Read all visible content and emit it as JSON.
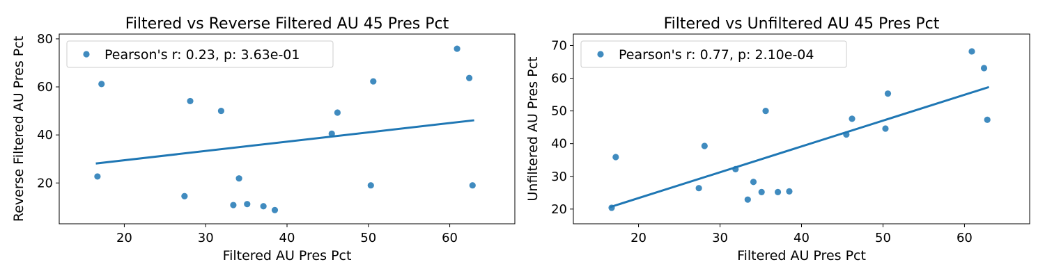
{
  "chart_data": [
    {
      "type": "scatter",
      "title": "Filtered vs Reverse Filtered AU 45 Pres Pct",
      "xlabel": "Filtered AU Pres Pct",
      "ylabel": "Reverse Filtered AU Pres Pct",
      "xlim": [
        12,
        68
      ],
      "ylim": [
        3,
        82
      ],
      "xticks": [
        20,
        30,
        40,
        50,
        60
      ],
      "yticks": [
        20,
        40,
        60,
        80
      ],
      "grid": false,
      "legend_position": "top-left",
      "color": "#1f77b4",
      "series": [
        {
          "name": "Pearson's r: 0.23, p: 3.63e-01",
          "points": [
            [
              16.7,
              22.7
            ],
            [
              17.2,
              61.2
            ],
            [
              27.4,
              14.5
            ],
            [
              28.1,
              54.1
            ],
            [
              31.9,
              50.0
            ],
            [
              33.4,
              10.8
            ],
            [
              34.1,
              21.9
            ],
            [
              35.1,
              11.2
            ],
            [
              37.1,
              10.3
            ],
            [
              38.5,
              8.7
            ],
            [
              45.5,
              40.5
            ],
            [
              46.2,
              49.3
            ],
            [
              50.3,
              19.0
            ],
            [
              50.6,
              62.3
            ],
            [
              60.9,
              75.9
            ],
            [
              62.4,
              63.7
            ],
            [
              62.8,
              19.0
            ]
          ]
        }
      ],
      "trendline": {
        "x": [
          16.5,
          63.0
        ],
        "y": [
          28.1,
          46.1
        ]
      }
    },
    {
      "type": "scatter",
      "title": "Filtered vs Unfiltered AU 45 Pres Pct",
      "xlabel": "Filtered AU Pres Pct",
      "ylabel": "Unfiltered AU Pres Pct",
      "xlim": [
        12,
        68
      ],
      "ylim": [
        15.5,
        73.5
      ],
      "xticks": [
        20,
        30,
        40,
        50,
        60
      ],
      "yticks": [
        20,
        30,
        40,
        50,
        60,
        70
      ],
      "grid": false,
      "legend_position": "top-left",
      "color": "#1f77b4",
      "series": [
        {
          "name": "Pearson's r: 0.77, p: 2.10e-04",
          "points": [
            [
              16.7,
              20.4
            ],
            [
              17.2,
              35.9
            ],
            [
              27.4,
              26.4
            ],
            [
              28.1,
              39.3
            ],
            [
              31.9,
              32.2
            ],
            [
              33.4,
              22.9
            ],
            [
              34.1,
              28.3
            ],
            [
              35.1,
              25.2
            ],
            [
              35.6,
              50.0
            ],
            [
              37.1,
              25.2
            ],
            [
              38.5,
              25.4
            ],
            [
              45.5,
              42.8
            ],
            [
              46.2,
              47.6
            ],
            [
              50.3,
              44.6
            ],
            [
              50.6,
              55.3
            ],
            [
              60.9,
              68.2
            ],
            [
              62.4,
              63.1
            ],
            [
              62.8,
              47.3
            ]
          ]
        }
      ],
      "trendline": {
        "x": [
          16.5,
          63.0
        ],
        "y": [
          20.6,
          57.3
        ]
      }
    }
  ]
}
